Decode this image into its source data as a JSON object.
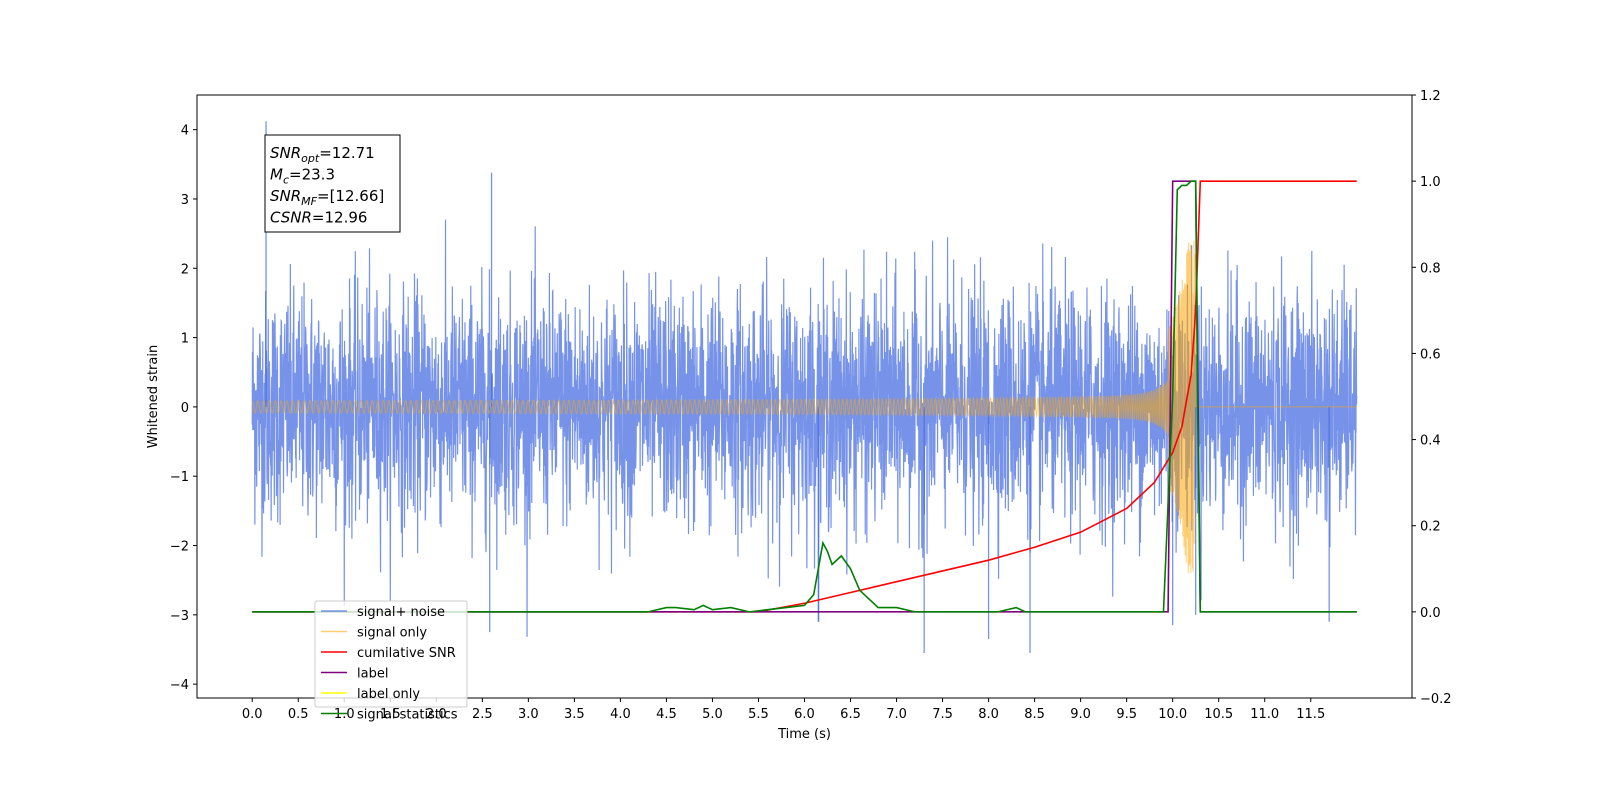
{
  "chart_data": {
    "type": "line",
    "title": "",
    "xlabel": "Time (s)",
    "ylabel": "Whitened strain",
    "y2label": "",
    "xlim": [
      -0.6,
      12.6
    ],
    "ylim": [
      -4.2,
      4.5
    ],
    "y2lim": [
      -0.2,
      1.2
    ],
    "x_ticks": [
      "0.0",
      "0.5",
      "1.0",
      "1.5",
      "2.0",
      "2.5",
      "3.0",
      "3.5",
      "4.0",
      "4.5",
      "5.0",
      "5.5",
      "6.0",
      "6.5",
      "7.0",
      "7.5",
      "8.0",
      "8.5",
      "9.0",
      "9.5",
      "10.0",
      "10.5",
      "11.0",
      "11.5"
    ],
    "y_ticks": [
      "4",
      "3",
      "2",
      "1",
      "0",
      "−1",
      "−2",
      "−3",
      "−4"
    ],
    "y2_ticks": [
      "1.2",
      "1.0",
      "0.8",
      "0.6",
      "0.4",
      "0.2",
      "0.0",
      "−0.2"
    ],
    "grid": false,
    "legend_position": "lower-left",
    "annotation": {
      "lines": [
        {
          "sym": "SNR",
          "sub": "opt",
          "value": "=12.71"
        },
        {
          "sym": "M",
          "sub": "c",
          "value": "=23.3"
        },
        {
          "sym": "SNR",
          "sub": "MF",
          "value": "=[12.66]"
        },
        {
          "sym": "CSNR",
          "sub": "",
          "value": "=12.96"
        }
      ]
    },
    "series": [
      {
        "name": "signal+ noise",
        "color": "#4169e1",
        "axis": "left",
        "kind": "noise",
        "x_range": [
          0.0,
          12.0
        ],
        "typical_amplitude": 1.5,
        "min": -3.55,
        "max": 4.12,
        "spikes": [
          [
            0.15,
            4.12
          ],
          [
            2.6,
            3.38
          ],
          [
            2.58,
            -3.25
          ],
          [
            7.3,
            -3.55
          ],
          [
            8.45,
            -3.55
          ],
          [
            10.0,
            -3.15
          ],
          [
            10.25,
            -3.0
          ],
          [
            11.7,
            -3.1
          ],
          [
            6.15,
            -3.1
          ],
          [
            8.0,
            -3.35
          ]
        ]
      },
      {
        "name": "signal only",
        "color": "#ffa500",
        "axis": "left",
        "kind": "chirp",
        "x_range": [
          0.0,
          12.0
        ],
        "merger_time": 10.25,
        "peak_amplitude": 2.4
      },
      {
        "name": "cumilative SNR",
        "color": "#ff0000",
        "axis": "right",
        "x": [
          0.0,
          5.5,
          6.0,
          6.5,
          7.0,
          7.5,
          8.0,
          8.5,
          9.0,
          9.5,
          9.8,
          10.0,
          10.1,
          10.2,
          10.25,
          10.3,
          12.0
        ],
        "y": [
          0.0,
          0.0,
          0.02,
          0.045,
          0.07,
          0.095,
          0.12,
          0.15,
          0.185,
          0.24,
          0.3,
          0.37,
          0.43,
          0.55,
          0.7,
          1.0,
          1.0
        ]
      },
      {
        "name": "label",
        "color": "#800080",
        "axis": "right",
        "x": [
          0.0,
          9.95,
          10.0,
          10.25,
          10.3,
          12.0
        ],
        "y": [
          0.0,
          0.0,
          1.0,
          1.0,
          0.0,
          0.0
        ]
      },
      {
        "name": "label only",
        "color": "#ffff00",
        "axis": "right",
        "x": [],
        "y": []
      },
      {
        "name": "signal statistics",
        "color": "#008000",
        "axis": "right",
        "x": [
          0.0,
          4.3,
          4.5,
          4.6,
          4.8,
          4.9,
          5.0,
          5.2,
          5.4,
          5.6,
          5.8,
          6.0,
          6.1,
          6.2,
          6.25,
          6.3,
          6.4,
          6.5,
          6.6,
          6.8,
          7.0,
          7.2,
          8.1,
          8.3,
          8.4,
          9.9,
          10.0,
          10.05,
          10.1,
          10.15,
          10.2,
          10.25,
          10.27,
          10.3,
          12.0
        ],
        "y": [
          0.0,
          0.0,
          0.01,
          0.01,
          0.005,
          0.015,
          0.005,
          0.01,
          0.0,
          0.005,
          0.01,
          0.015,
          0.04,
          0.16,
          0.14,
          0.11,
          0.13,
          0.1,
          0.05,
          0.01,
          0.01,
          0.0,
          0.0,
          0.01,
          0.0,
          0.0,
          0.5,
          0.98,
          0.99,
          0.99,
          1.0,
          1.0,
          0.5,
          0.0,
          0.0
        ]
      }
    ]
  }
}
